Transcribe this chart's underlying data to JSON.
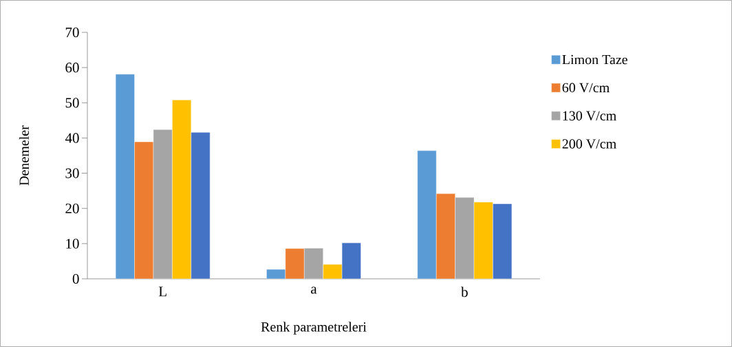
{
  "chart_data": {
    "type": "bar",
    "xlabel": "Renk parametreleri",
    "ylabel": "Denemeler",
    "categories": [
      "L",
      "a",
      "b"
    ],
    "series": [
      {
        "name": "Limon Taze",
        "color": "#5b9bd5",
        "values": [
          58.1,
          2.7,
          36.4
        ]
      },
      {
        "name": "60 V/cm",
        "color": "#ed7d31",
        "values": [
          38.9,
          8.6,
          24.2
        ]
      },
      {
        "name": "130 V/cm",
        "color": "#a5a5a5",
        "values": [
          42.4,
          8.7,
          23.1
        ]
      },
      {
        "name": "200 V/cm",
        "color": "#ffc000",
        "values": [
          50.8,
          4.1,
          21.8
        ]
      },
      {
        "color": "#4472c4",
        "values": [
          41.6,
          10.2,
          21.3
        ]
      }
    ],
    "ylim": [
      0,
      70
    ],
    "yticks": [
      0,
      10,
      20,
      30,
      40,
      50,
      60,
      70
    ],
    "grid": false,
    "legend": "right"
  }
}
